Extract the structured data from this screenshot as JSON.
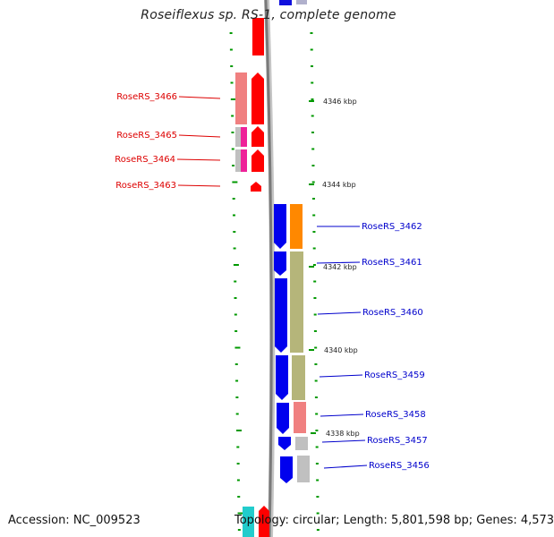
{
  "title": "Roseiflexus sp. RS-1, complete genome",
  "accession": "Accession: NC_009523",
  "topology": "Topology: circular; Length: 5,801,598 bp; Genes: 4,573",
  "colors": {
    "left_label": "#dd0000",
    "right_label": "#0000cc",
    "tick": "#009900",
    "backbone": "#8c8c8c"
  },
  "scale_labels": [
    "4346 kbp",
    "4344 kbp",
    "4342 kbp",
    "4340 kbp",
    "4338 kbp"
  ],
  "left_genes": [
    {
      "label": "RoseRS_3466"
    },
    {
      "label": "RoseRS_3465"
    },
    {
      "label": "RoseRS_3464"
    },
    {
      "label": "RoseRS_3463"
    }
  ],
  "right_genes": [
    {
      "label": "RoseRS_3462"
    },
    {
      "label": "RoseRS_3461"
    },
    {
      "label": "RoseRS_3460"
    },
    {
      "label": "RoseRS_3459"
    },
    {
      "label": "RoseRS_3458"
    },
    {
      "label": "RoseRS_3457"
    },
    {
      "label": "RoseRS_3456"
    }
  ]
}
